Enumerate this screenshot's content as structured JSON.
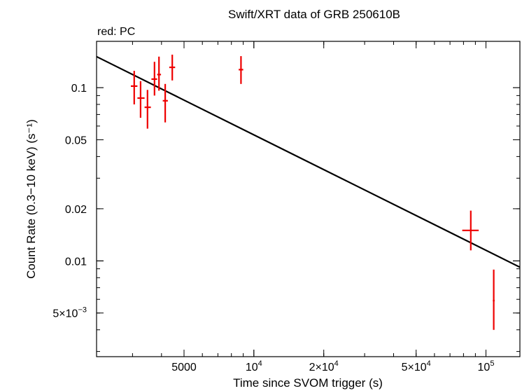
{
  "chart_data": {
    "type": "scatter",
    "title": "Swift/XRT data of GRB 250610B",
    "subtitle": "red: PC",
    "xlabel": "Time since SVOM trigger (s)",
    "ylabel": "Count Rate (0.3−10 keV) (s⁻¹)",
    "xscale": "log",
    "yscale": "log",
    "xlim": [
      2100,
      140000
    ],
    "ylim": [
      0.0028,
      0.185
    ],
    "grid": false,
    "colors": {
      "data": "#ee0000",
      "model": "#000000"
    },
    "x_ticks": [
      {
        "value": 5000,
        "label": "5000"
      },
      {
        "value": 10000,
        "label": "10",
        "sup": "4"
      },
      {
        "value": 20000,
        "label": "2×10",
        "sup": "4"
      },
      {
        "value": 50000,
        "label": "5×10",
        "sup": "4"
      },
      {
        "value": 100000,
        "label": "10",
        "sup": "5"
      }
    ],
    "y_ticks": [
      {
        "value": 0.1,
        "label": "0.1"
      },
      {
        "value": 0.05,
        "label": "0.05"
      },
      {
        "value": 0.02,
        "label": "0.02"
      },
      {
        "value": 0.01,
        "label": "0.01"
      },
      {
        "value": 0.005,
        "label": "5×10",
        "sup": "−3"
      }
    ],
    "series": [
      {
        "points": [
          {
            "x": 3050,
            "xlo": 2950,
            "xhi": 3150,
            "y": 0.102,
            "ylo": 0.08,
            "yhi": 0.125
          },
          {
            "x": 3250,
            "xlo": 3150,
            "xhi": 3380,
            "y": 0.087,
            "ylo": 0.067,
            "yhi": 0.109
          },
          {
            "x": 3480,
            "xlo": 3380,
            "xhi": 3600,
            "y": 0.077,
            "ylo": 0.058,
            "yhi": 0.097
          },
          {
            "x": 3730,
            "xlo": 3620,
            "xhi": 3830,
            "y": 0.112,
            "ylo": 0.09,
            "yhi": 0.141
          },
          {
            "x": 3900,
            "xlo": 3830,
            "xhi": 3980,
            "y": 0.119,
            "ylo": 0.096,
            "yhi": 0.151
          },
          {
            "x": 4150,
            "xlo": 4050,
            "xhi": 4260,
            "y": 0.084,
            "ylo": 0.063,
            "yhi": 0.105
          },
          {
            "x": 4450,
            "xlo": 4320,
            "xhi": 4580,
            "y": 0.131,
            "ylo": 0.11,
            "yhi": 0.155
          },
          {
            "x": 8800,
            "xlo": 8600,
            "xhi": 9000,
            "y": 0.127,
            "ylo": 0.105,
            "yhi": 0.152
          },
          {
            "x": 86000,
            "xlo": 79000,
            "xhi": 93000,
            "y": 0.015,
            "ylo": 0.0115,
            "yhi": 0.0195
          },
          {
            "x": 108000,
            "xlo": 107000,
            "xhi": 109000,
            "y": 0.0059,
            "ylo": 0.004,
            "yhi": 0.0089
          }
        ]
      }
    ],
    "model_line": [
      {
        "x": 2100,
        "y": 0.151
      },
      {
        "x": 140000,
        "y": 0.0092
      }
    ]
  }
}
